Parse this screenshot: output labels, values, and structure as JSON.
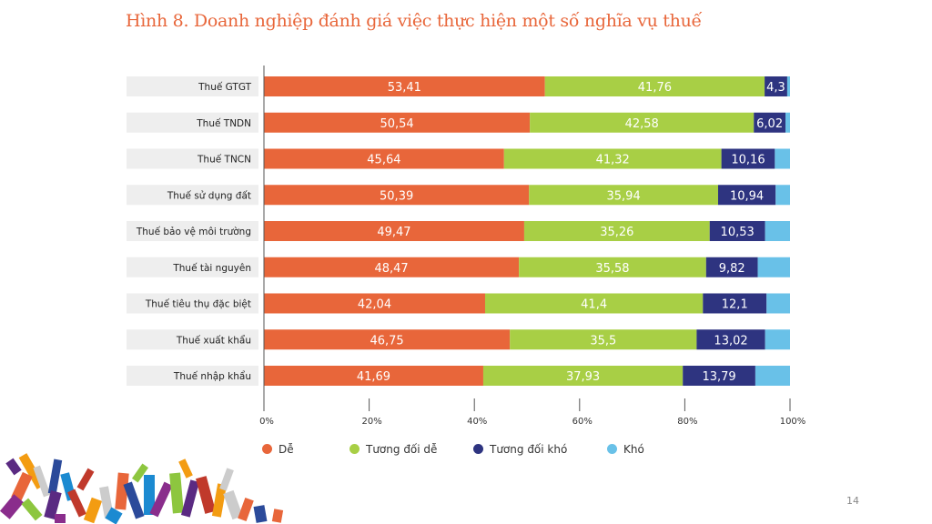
{
  "title": "Hình 8. Doanh nghiệp đánh giá việc thực hiện một số nghĩa vụ thuế",
  "page_number": "14",
  "colors": {
    "De": "#e8663a",
    "TuongDoiDe": "#a8cf45",
    "TuongDoiKho": "#2e3480",
    "Kho": "#69c1e8",
    "label_bg": "#eeeeee"
  },
  "chart_data": {
    "type": "bar",
    "orientation": "horizontal",
    "stacked": true,
    "title": "Hình 8. Doanh nghiệp đánh giá việc thực hiện một số nghĩa vụ thuế",
    "categories": [
      "Thuế GTGT",
      "Thuế TNDN",
      "Thuế TNCN",
      "Thuế sử dụng đất",
      "Thuế bảo vệ môi trường",
      "Thuế tài nguyên",
      "Thuế tiêu thụ đặc biệt",
      "Thuế xuất khẩu",
      "Thuế nhập khẩu"
    ],
    "series": [
      {
        "name": "Dễ",
        "color": "#e8663a",
        "values": [
          53.41,
          50.54,
          45.64,
          50.39,
          49.47,
          48.47,
          42.04,
          46.75,
          41.69
        ],
        "labels": [
          "53,41",
          "50,54",
          "45,64",
          "50,39",
          "49,47",
          "48,47",
          "42,04",
          "46,75",
          "41,69"
        ]
      },
      {
        "name": "Tương đối dễ",
        "color": "#a8cf45",
        "values": [
          41.76,
          42.58,
          41.32,
          35.94,
          35.26,
          35.58,
          41.4,
          35.5,
          37.93
        ],
        "labels": [
          "41,76",
          "42,58",
          "41,32",
          "35,94",
          "35,26",
          "35,58",
          "41,4",
          "35,5",
          "37,93"
        ]
      },
      {
        "name": "Tương đối khó",
        "color": "#2e3480",
        "values": [
          4.3,
          6.02,
          10.16,
          10.94,
          10.53,
          9.82,
          12.1,
          13.02,
          13.79
        ],
        "labels": [
          "4,3",
          "6,02",
          "10,16",
          "10,94",
          "10,53",
          "9,82",
          "12,1",
          "13,02",
          "13,79"
        ]
      },
      {
        "name": "Khó",
        "color": "#69c1e8",
        "values": [
          0.53,
          0.86,
          2.88,
          2.73,
          4.74,
          6.13,
          4.46,
          4.73,
          6.59
        ],
        "labels": [
          "",
          "",
          "",
          "",
          "",
          "",
          "",
          "",
          ""
        ]
      }
    ],
    "xlim": [
      0,
      100
    ],
    "xticks": [
      "0%",
      "20%",
      "40%",
      "60%",
      "80%",
      "100%"
    ],
    "legend": {
      "position": "bottom",
      "entries": [
        "Dễ",
        "Tương đối dễ",
        "Tương đối khó",
        "Khó"
      ]
    }
  }
}
